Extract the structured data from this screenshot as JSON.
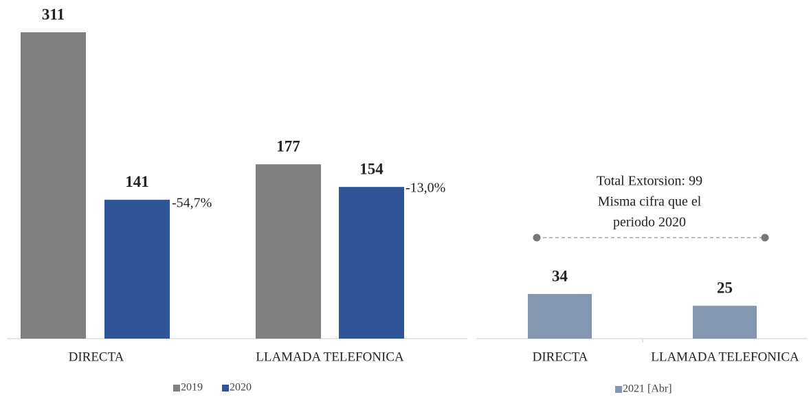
{
  "chart_data": [
    {
      "type": "bar",
      "categories": [
        "DIRECTA",
        "LLAMADA TELEFONICA"
      ],
      "series": [
        {
          "name": "2019",
          "color": "#808080",
          "values": [
            311,
            177
          ]
        },
        {
          "name": "2020",
          "color": "#2f5597",
          "values": [
            141,
            154
          ]
        }
      ],
      "annotations": [
        "-54,7%",
        "-13,0%"
      ]
    },
    {
      "type": "bar",
      "categories": [
        "DIRECTA",
        "LLAMADA TELEFONICA"
      ],
      "series": [
        {
          "name": "2021 [Abr]",
          "color": "#8497b0",
          "values": [
            34,
            25
          ]
        }
      ],
      "annotations": [
        "Total Extorsion: 99",
        "Misma cifra que el",
        "periodo 2020"
      ]
    }
  ]
}
